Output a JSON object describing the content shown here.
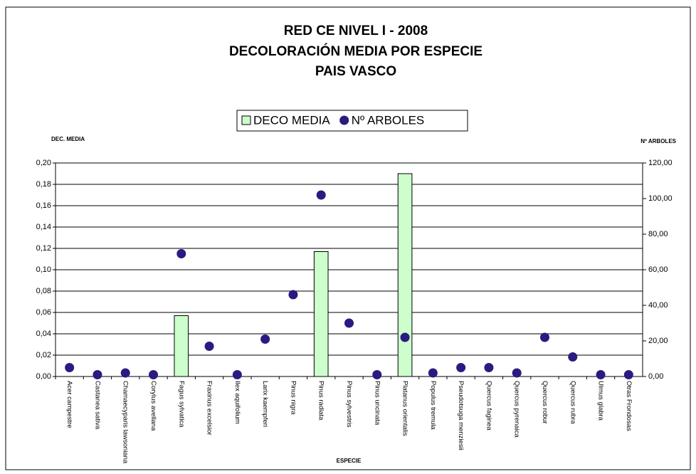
{
  "chart_data": {
    "type": "bar_scatter",
    "title": [
      "RED CE NIVEL I - 2008",
      "DECOLORACIÓN MEDIA POR ESPECIE",
      "PAIS VASCO"
    ],
    "y_label": "DEC. MEDIA",
    "y2_label": "Nº ARBOLES",
    "x_label": "ESPECIE",
    "categories": [
      "Acer campestre",
      "Castanea sativa",
      "Chamaecyparis lawsoniana",
      "Corylus avellana",
      "Fagus sylvatica",
      "Fraxinus excelsior",
      "Ilex aquifolium",
      "Larix kaempferi",
      "Pinus nigra",
      "Pinus radiata",
      "Pinus sylvestris",
      "Pinus uncinata",
      "Platanus orientalis",
      "Populus tremula",
      "Pseudotsuga menziesii",
      "Quercus faginea",
      "Quercus pyrenaica",
      "Quercus robur",
      "Quercus rubra",
      "Ulmus glabra",
      "Otras Frondosas"
    ],
    "series": [
      {
        "name": "DECO MEDIA",
        "kind": "bar",
        "color": "#ccffcc",
        "values": [
          0,
          0,
          0,
          0,
          0.057,
          0,
          0,
          0,
          0,
          0.117,
          0,
          0,
          0.19,
          0,
          0,
          0,
          0,
          0,
          0,
          0,
          0
        ]
      },
      {
        "name": "Nº ARBOLES",
        "kind": "dot",
        "axis": "y2",
        "color": "#2b1a80",
        "values": [
          5,
          1,
          2,
          1,
          69,
          17,
          1,
          21,
          46,
          102,
          30,
          1,
          22,
          2,
          5,
          5,
          2,
          22,
          11,
          1,
          1
        ]
      }
    ],
    "ylim": [
      0,
      0.2
    ],
    "yticks": [
      {
        "value": 0,
        "label": "0,00"
      },
      {
        "value": 0.02,
        "label": "0,02"
      },
      {
        "value": 0.04,
        "label": "0,04"
      },
      {
        "value": 0.06,
        "label": "0,06"
      },
      {
        "value": 0.08,
        "label": "0,08"
      },
      {
        "value": 0.1,
        "label": "0,10"
      },
      {
        "value": 0.12,
        "label": "0,12"
      },
      {
        "value": 0.14,
        "label": "0,14"
      },
      {
        "value": 0.16,
        "label": "0,16"
      },
      {
        "value": 0.18,
        "label": "0,18"
      },
      {
        "value": 0.2,
        "label": "0,20"
      }
    ],
    "y2lim": [
      0,
      120
    ],
    "y2ticks": [
      {
        "value": 0,
        "label": "0,00"
      },
      {
        "value": 20,
        "label": "20,00"
      },
      {
        "value": 40,
        "label": "40,00"
      },
      {
        "value": 60,
        "label": "60,00"
      },
      {
        "value": 80,
        "label": "80,00"
      },
      {
        "value": 100,
        "label": "100,00"
      },
      {
        "value": 120,
        "label": "120,00"
      }
    ],
    "grid": true
  }
}
